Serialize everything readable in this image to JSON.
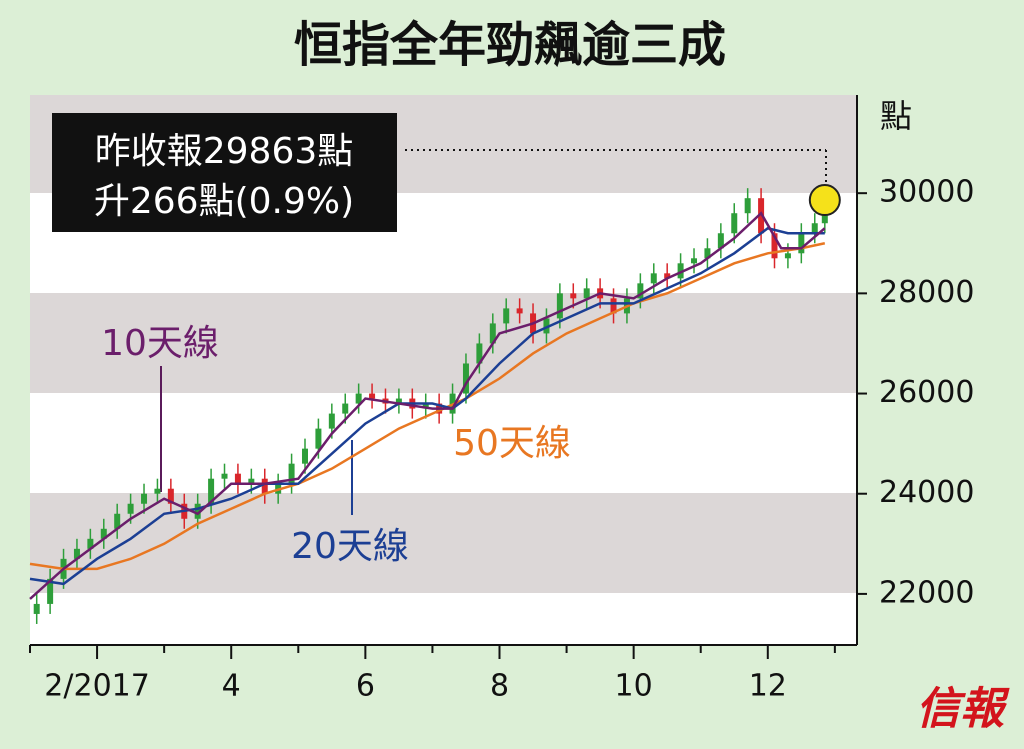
{
  "chart_data": {
    "type": "candlestick",
    "title": "恒指全年勁飆逾三成",
    "y_unit": "點",
    "note_lines": [
      "昨收報29863點",
      "升266點(0.9%)"
    ],
    "logo": "信報",
    "xlim": [
      1.0,
      13.33
    ],
    "xticks": [
      {
        "value": 2,
        "label": "2/2017"
      },
      4,
      6,
      8,
      10,
      12
    ],
    "xminor": [
      1,
      3,
      5,
      7,
      9,
      11,
      13
    ],
    "ylim": [
      20980,
      31960
    ],
    "yticks": [
      22000,
      24000,
      26000,
      28000,
      30000
    ],
    "candles": {
      "up_color": "#2e9e3a",
      "down_color": "#d9262b",
      "x": [
        1.1,
        1.3,
        1.5,
        1.7,
        1.9,
        2.1,
        2.3,
        2.5,
        2.7,
        2.9,
        3.1,
        3.3,
        3.5,
        3.7,
        3.9,
        4.1,
        4.3,
        4.5,
        4.7,
        4.9,
        5.1,
        5.3,
        5.5,
        5.7,
        5.9,
        6.1,
        6.3,
        6.5,
        6.7,
        6.9,
        7.1,
        7.3,
        7.5,
        7.7,
        7.9,
        8.1,
        8.3,
        8.5,
        8.7,
        8.9,
        9.1,
        9.3,
        9.5,
        9.7,
        9.9,
        10.1,
        10.3,
        10.5,
        10.7,
        10.9,
        11.1,
        11.3,
        11.5,
        11.7,
        11.9,
        12.1,
        12.3,
        12.5,
        12.7,
        12.85
      ],
      "open": [
        21600,
        21800,
        22300,
        22700,
        22900,
        23100,
        23300,
        23600,
        23800,
        24000,
        24100,
        23800,
        23500,
        23800,
        24300,
        24400,
        24200,
        24300,
        24000,
        24200,
        24600,
        24900,
        25300,
        25600,
        25800,
        26000,
        25900,
        25800,
        25900,
        25700,
        25800,
        25600,
        26000,
        26600,
        27000,
        27400,
        27700,
        27600,
        27200,
        27500,
        28000,
        27900,
        28100,
        27900,
        27600,
        27900,
        28200,
        28400,
        28300,
        28600,
        28700,
        28900,
        29200,
        29600,
        29900,
        29200,
        28700,
        28800,
        29200,
        29400
      ],
      "high": [
        22000,
        22500,
        22900,
        23100,
        23300,
        23500,
        23800,
        24000,
        24200,
        24300,
        24300,
        24000,
        24000,
        24500,
        24600,
        24600,
        24500,
        24500,
        24400,
        24800,
        25100,
        25500,
        25800,
        26000,
        26200,
        26200,
        26100,
        26100,
        26100,
        26000,
        26000,
        26200,
        26800,
        27200,
        27600,
        27900,
        27900,
        27800,
        27700,
        28200,
        28200,
        28300,
        28300,
        28100,
        28100,
        28400,
        28600,
        28600,
        28800,
        28900,
        29100,
        29400,
        29800,
        30100,
        30100,
        29400,
        29000,
        29400,
        29600,
        29950
      ],
      "low": [
        21400,
        21600,
        22100,
        22500,
        22700,
        22900,
        23100,
        23400,
        23600,
        23800,
        23600,
        23300,
        23300,
        23600,
        24100,
        24000,
        24000,
        23800,
        23800,
        24000,
        24400,
        24700,
        25100,
        25400,
        25600,
        25700,
        25600,
        25600,
        25500,
        25500,
        25400,
        25400,
        25800,
        26400,
        26800,
        27200,
        27400,
        27000,
        27000,
        27300,
        27700,
        27700,
        27700,
        27400,
        27400,
        27700,
        28000,
        28100,
        28100,
        28400,
        28500,
        28700,
        29000,
        29400,
        29000,
        28500,
        28500,
        28600,
        29000,
        29200
      ],
      "close": [
        21800,
        22300,
        22700,
        22900,
        23100,
        23300,
        23600,
        23800,
        24000,
        24100,
        23800,
        23500,
        23800,
        24300,
        24400,
        24200,
        24300,
        24000,
        24200,
        24600,
        24900,
        25300,
        25600,
        25800,
        26000,
        25900,
        25800,
        25900,
        25700,
        25800,
        25600,
        26000,
        26600,
        27000,
        27400,
        27700,
        27600,
        27200,
        27500,
        28000,
        27900,
        28100,
        27900,
        27600,
        27900,
        28200,
        28400,
        28300,
        28600,
        28700,
        28900,
        29200,
        29600,
        29900,
        29200,
        28700,
        28800,
        29200,
        29400,
        29863
      ]
    },
    "series": [
      {
        "name": "50天線",
        "color": "#e87722",
        "x": [
          1.0,
          1.5,
          2.0,
          2.5,
          3.0,
          3.5,
          4.0,
          4.5,
          5.0,
          5.5,
          6.0,
          6.5,
          7.0,
          7.5,
          8.0,
          8.5,
          9.0,
          9.5,
          10.0,
          10.5,
          11.0,
          11.5,
          12.0,
          12.5,
          12.85
        ],
        "values": [
          22600,
          22500,
          22500,
          22700,
          23000,
          23400,
          23700,
          24000,
          24200,
          24500,
          24900,
          25300,
          25600,
          25900,
          26300,
          26800,
          27200,
          27500,
          27800,
          28000,
          28300,
          28600,
          28800,
          28900,
          29000
        ]
      },
      {
        "name": "20天線",
        "color": "#1c3f94",
        "x": [
          1.0,
          1.5,
          2.0,
          2.5,
          3.0,
          3.5,
          4.0,
          4.5,
          5.0,
          5.5,
          6.0,
          6.5,
          7.0,
          7.3,
          7.5,
          8.0,
          8.5,
          9.0,
          9.5,
          10.0,
          10.5,
          11.0,
          11.5,
          12.0,
          12.3,
          12.6,
          12.85
        ],
        "values": [
          22300,
          22200,
          22700,
          23100,
          23600,
          23700,
          23900,
          24200,
          24200,
          24800,
          25400,
          25800,
          25800,
          25700,
          25900,
          26600,
          27200,
          27500,
          27800,
          27800,
          28100,
          28400,
          28800,
          29300,
          29200,
          29200,
          29200
        ]
      },
      {
        "name": "10天線",
        "color": "#6b1e6b",
        "x": [
          1.0,
          1.5,
          2.0,
          2.5,
          3.0,
          3.5,
          4.0,
          4.5,
          5.0,
          5.5,
          6.0,
          6.5,
          7.0,
          7.3,
          7.5,
          8.0,
          8.5,
          9.0,
          9.5,
          10.0,
          10.5,
          11.0,
          11.5,
          11.9,
          12.2,
          12.5,
          12.85
        ],
        "values": [
          21900,
          22500,
          23000,
          23500,
          23900,
          23600,
          24200,
          24200,
          24300,
          25200,
          25900,
          25800,
          25700,
          25700,
          26200,
          27200,
          27400,
          27700,
          28000,
          27900,
          28300,
          28600,
          29100,
          29600,
          28900,
          28900,
          29300
        ]
      }
    ]
  }
}
